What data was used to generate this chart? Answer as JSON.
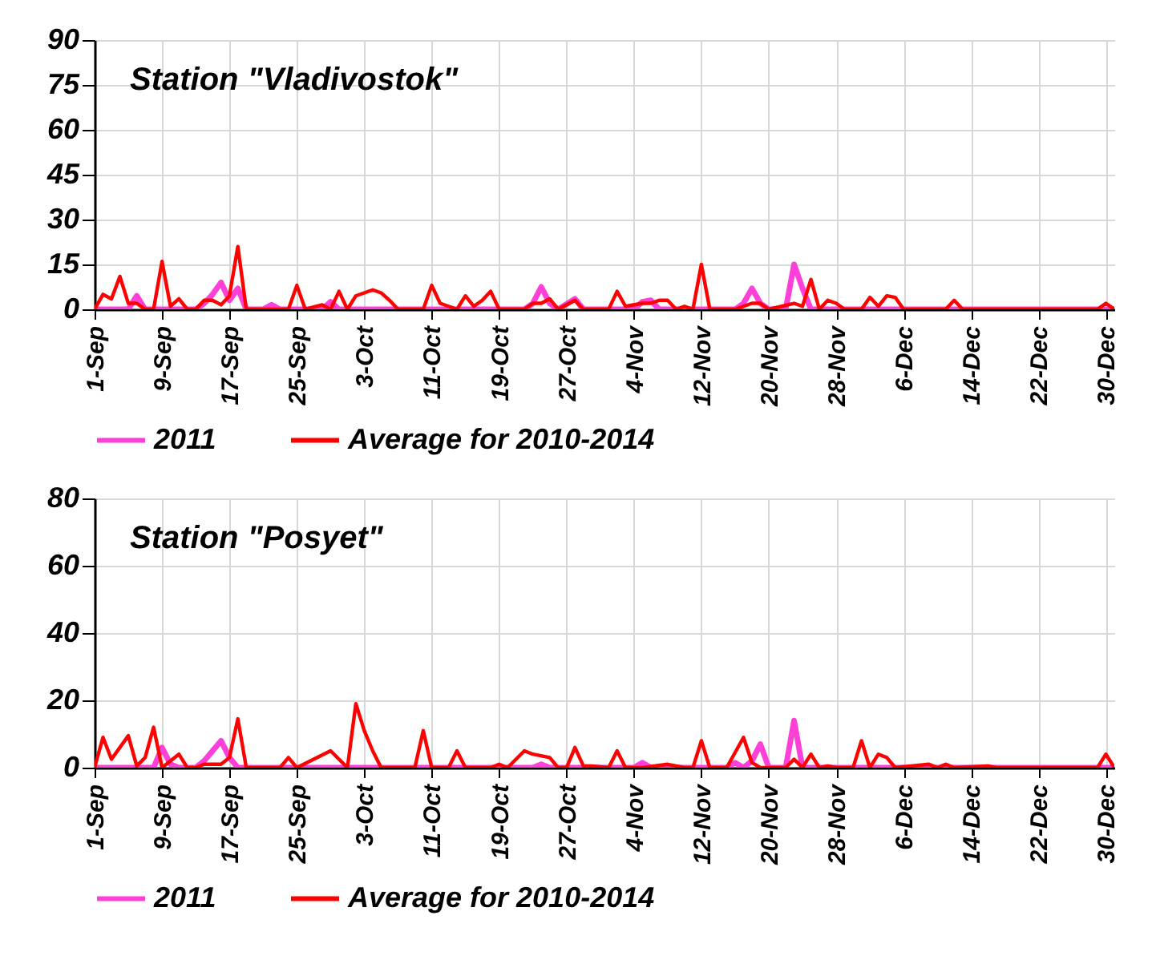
{
  "chart_data": [
    {
      "type": "line",
      "title": "Station \"Vladivostok\"",
      "xlim": [
        "--09-01",
        "--12-31"
      ],
      "ylim": [
        0,
        90
      ],
      "yticks": [
        0,
        15,
        30,
        45,
        60,
        75,
        90
      ],
      "grid": true,
      "legend": "bottom",
      "xticks": [
        {
          "value": "--09-01",
          "label": "1-Sep"
        },
        {
          "value": "--09-09",
          "label": "9-Sep"
        },
        {
          "value": "--09-17",
          "label": "17-Sep"
        },
        {
          "value": "--09-25",
          "label": "25-Sep"
        },
        {
          "value": "--10-03",
          "label": "3-Oct"
        },
        {
          "value": "--10-11",
          "label": "11-Oct"
        },
        {
          "value": "--10-19",
          "label": "19-Oct"
        },
        {
          "value": "--10-27",
          "label": "27-Oct"
        },
        {
          "value": "--11-04",
          "label": "4-Nov"
        },
        {
          "value": "--11-12",
          "label": "12-Nov"
        },
        {
          "value": "--11-20",
          "label": "20-Nov"
        },
        {
          "value": "--11-28",
          "label": "28-Nov"
        },
        {
          "value": "--12-06",
          "label": "6-Dec"
        },
        {
          "value": "--12-14",
          "label": "14-Dec"
        },
        {
          "value": "--12-22",
          "label": "22-Dec"
        },
        {
          "value": "--12-30",
          "label": "30-Dec"
        }
      ],
      "series": [
        {
          "name": "2011",
          "color": "#ff40d8",
          "x": [
            "--09-01",
            "--09-05",
            "--09-06",
            "--09-07",
            "--09-13",
            "--09-14",
            "--09-15",
            "--09-16",
            "--09-17",
            "--09-18",
            "--09-19",
            "--09-21",
            "--09-22",
            "--09-23",
            "--09-28",
            "--09-29",
            "--09-30",
            "--10-22",
            "--10-23",
            "--10-24",
            "--10-25",
            "--10-26",
            "--10-28",
            "--10-29",
            "--11-04",
            "--11-05",
            "--11-06",
            "--11-07",
            "--11-16",
            "--11-17",
            "--11-18",
            "--11-19",
            "--11-20",
            "--11-22",
            "--11-23",
            "--11-24",
            "--11-25",
            "--12-31"
          ],
          "values": [
            0,
            0,
            4.5,
            0,
            0,
            2,
            5,
            9,
            3,
            7,
            0,
            0,
            1.5,
            0,
            0,
            2.5,
            0,
            0,
            2,
            7.5,
            2,
            0,
            3.5,
            0,
            0,
            2.5,
            3,
            0,
            0,
            2,
            7,
            2,
            0,
            0,
            15,
            7,
            0,
            0
          ]
        },
        {
          "name": "Average for 2010-2014",
          "color": "#ff0000",
          "x": [
            "--09-01",
            "--09-02",
            "--09-03",
            "--09-04",
            "--09-05",
            "--09-06",
            "--09-07",
            "--09-08",
            "--09-09",
            "--09-10",
            "--09-11",
            "--09-12",
            "--09-13",
            "--09-14",
            "--09-15",
            "--09-16",
            "--09-17",
            "--09-18",
            "--09-19",
            "--09-24",
            "--09-25",
            "--09-26",
            "--09-28",
            "--09-29",
            "--09-30",
            "--10-01",
            "--10-02",
            "--10-04",
            "--10-05",
            "--10-06",
            "--10-07",
            "--10-10",
            "--10-11",
            "--10-12",
            "--10-13",
            "--10-14",
            "--10-15",
            "--10-16",
            "--10-17",
            "--10-18",
            "--10-19",
            "--10-22",
            "--10-23",
            "--10-24",
            "--10-25",
            "--10-26",
            "--10-28",
            "--10-29",
            "--11-01",
            "--11-02",
            "--11-03",
            "--11-05",
            "--11-06",
            "--11-07",
            "--11-08",
            "--11-09",
            "--11-10",
            "--11-11",
            "--11-12",
            "--11-13",
            "--11-16",
            "--11-18",
            "--11-19",
            "--11-20",
            "--11-23",
            "--11-24",
            "--11-25",
            "--11-26",
            "--11-27",
            "--11-28",
            "--11-29",
            "--12-01",
            "--12-02",
            "--12-03",
            "--12-04",
            "--12-05",
            "--12-06",
            "--12-11",
            "--12-12",
            "--12-13",
            "--12-29",
            "--12-30",
            "--12-31"
          ],
          "values": [
            0,
            5,
            3.5,
            11,
            2,
            2,
            0,
            0,
            16,
            1,
            3.5,
            0,
            0,
            3,
            3,
            1.5,
            4.5,
            21,
            0,
            0,
            8,
            0,
            1.5,
            0,
            6,
            0,
            4.5,
            6.5,
            5.5,
            3,
            0,
            0,
            8,
            2,
            1,
            0,
            4.5,
            1,
            3,
            6,
            0,
            0,
            2,
            2,
            3.5,
            0,
            3,
            0,
            0,
            6,
            1,
            2,
            2,
            3,
            3,
            0,
            1,
            0,
            15,
            0,
            0,
            2,
            2,
            0,
            2,
            1,
            10,
            0,
            3,
            2,
            0,
            0,
            4,
            1,
            4.5,
            4,
            0,
            0,
            3,
            0,
            0,
            2,
            0
          ]
        }
      ]
    },
    {
      "type": "line",
      "title": "Station \"Posyet\"",
      "xlim": [
        "--09-01",
        "--12-31"
      ],
      "ylim": [
        0,
        80
      ],
      "yticks": [
        0,
        20,
        40,
        60,
        80
      ],
      "grid": true,
      "legend": "bottom",
      "xticks": [
        {
          "value": "--09-01",
          "label": "1-Sep"
        },
        {
          "value": "--09-09",
          "label": "9-Sep"
        },
        {
          "value": "--09-17",
          "label": "17-Sep"
        },
        {
          "value": "--09-25",
          "label": "25-Sep"
        },
        {
          "value": "--10-03",
          "label": "3-Oct"
        },
        {
          "value": "--10-11",
          "label": "11-Oct"
        },
        {
          "value": "--10-19",
          "label": "19-Oct"
        },
        {
          "value": "--10-27",
          "label": "27-Oct"
        },
        {
          "value": "--11-04",
          "label": "4-Nov"
        },
        {
          "value": "--11-12",
          "label": "12-Nov"
        },
        {
          "value": "--11-20",
          "label": "20-Nov"
        },
        {
          "value": "--11-28",
          "label": "28-Nov"
        },
        {
          "value": "--12-06",
          "label": "6-Dec"
        },
        {
          "value": "--12-14",
          "label": "14-Dec"
        },
        {
          "value": "--12-22",
          "label": "22-Dec"
        },
        {
          "value": "--12-30",
          "label": "30-Dec"
        }
      ],
      "series": [
        {
          "name": "2011",
          "color": "#ff40d8",
          "x": [
            "--09-01",
            "--09-08",
            "--09-09",
            "--09-10",
            "--09-11",
            "--09-13",
            "--09-14",
            "--09-15",
            "--09-16",
            "--09-17",
            "--09-18",
            "--10-23",
            "--10-24",
            "--10-25",
            "--11-04",
            "--11-05",
            "--11-06",
            "--11-15",
            "--11-16",
            "--11-17",
            "--11-18",
            "--11-19",
            "--11-20",
            "--11-22",
            "--11-23",
            "--11-24",
            "--12-31"
          ],
          "values": [
            0,
            0,
            6,
            1,
            0,
            0,
            2,
            5,
            8,
            3,
            0,
            0,
            1,
            0,
            0,
            1.5,
            0,
            0,
            1.5,
            0,
            2,
            7,
            0,
            0,
            14,
            0,
            0
          ]
        },
        {
          "name": "Average for 2010-2014",
          "color": "#ff0000",
          "x": [
            "--09-01",
            "--09-02",
            "--09-03",
            "--09-05",
            "--09-06",
            "--09-07",
            "--09-08",
            "--09-09",
            "--09-11",
            "--09-12",
            "--09-13",
            "--09-14",
            "--09-16",
            "--09-17",
            "--09-18",
            "--09-19",
            "--09-23",
            "--09-24",
            "--09-25",
            "--09-29",
            "--10-01",
            "--10-02",
            "--10-03",
            "--10-04",
            "--10-05",
            "--10-09",
            "--10-10",
            "--10-11",
            "--10-13",
            "--10-14",
            "--10-15",
            "--10-18",
            "--10-19",
            "--10-20",
            "--10-22",
            "--10-23",
            "--10-25",
            "--10-26",
            "--10-27",
            "--10-28",
            "--10-29",
            "--10-30",
            "--11-01",
            "--11-02",
            "--11-03",
            "--11-05",
            "--11-08",
            "--11-10",
            "--11-11",
            "--11-12",
            "--11-13",
            "--11-15",
            "--11-17",
            "--11-18",
            "--11-19",
            "--11-22",
            "--11-23",
            "--11-24",
            "--11-25",
            "--11-26",
            "--11-27",
            "--11-28",
            "--11-29",
            "--11-30",
            "--12-01",
            "--12-02",
            "--12-03",
            "--12-04",
            "--12-05",
            "--12-09",
            "--12-10",
            "--12-11",
            "--12-12",
            "--12-16",
            "--12-17",
            "--12-29",
            "--12-30",
            "--12-31"
          ],
          "values": [
            0,
            9,
            2.5,
            9.5,
            0.5,
            3,
            12,
            0,
            4,
            0,
            0,
            1,
            1,
            3,
            14.5,
            0,
            0,
            3,
            0,
            5,
            0,
            19,
            11,
            5,
            0,
            0,
            11,
            0,
            0,
            5,
            0,
            0,
            1,
            0,
            5,
            4,
            3,
            0,
            0,
            6,
            0.5,
            0.5,
            0,
            5,
            0,
            0,
            1,
            0,
            0,
            8,
            0,
            0,
            9,
            1.5,
            0,
            0,
            2.5,
            0,
            4,
            0,
            0.5,
            0,
            0,
            0,
            8,
            0,
            4,
            3,
            0,
            1,
            0,
            1,
            0,
            0.5,
            0,
            0,
            4,
            0
          ]
        }
      ]
    }
  ]
}
